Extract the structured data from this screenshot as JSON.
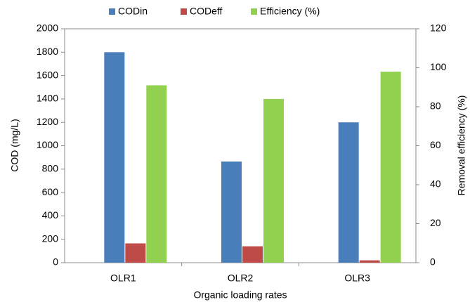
{
  "chart_data": {
    "type": "bar",
    "categories": [
      "OLR1",
      "OLR2",
      "OLR3"
    ],
    "series": [
      {
        "name": "CODin",
        "color": "#4a7ebb",
        "values": [
          1800,
          865,
          1200
        ]
      },
      {
        "name": "CODeff",
        "color": "#be4b48",
        "values": [
          165,
          140,
          20
        ]
      },
      {
        "name": "Efficiency (%)",
        "color": "#92d050",
        "values": [
          91,
          84,
          98
        ],
        "axis": "y2"
      }
    ],
    "x_label": "Organic loading rates",
    "y_label": "COD (mg/L)",
    "y2_label": "Removal efficiency (%)",
    "ylim": [
      0,
      2000
    ],
    "yticks": [
      0,
      200,
      400,
      600,
      800,
      1000,
      1200,
      1400,
      1600,
      1800,
      2000
    ],
    "y2lim": [
      0,
      120
    ],
    "y2ticks": [
      0,
      20,
      40,
      60,
      80,
      100,
      120
    ],
    "grid": false,
    "legend": "top"
  }
}
